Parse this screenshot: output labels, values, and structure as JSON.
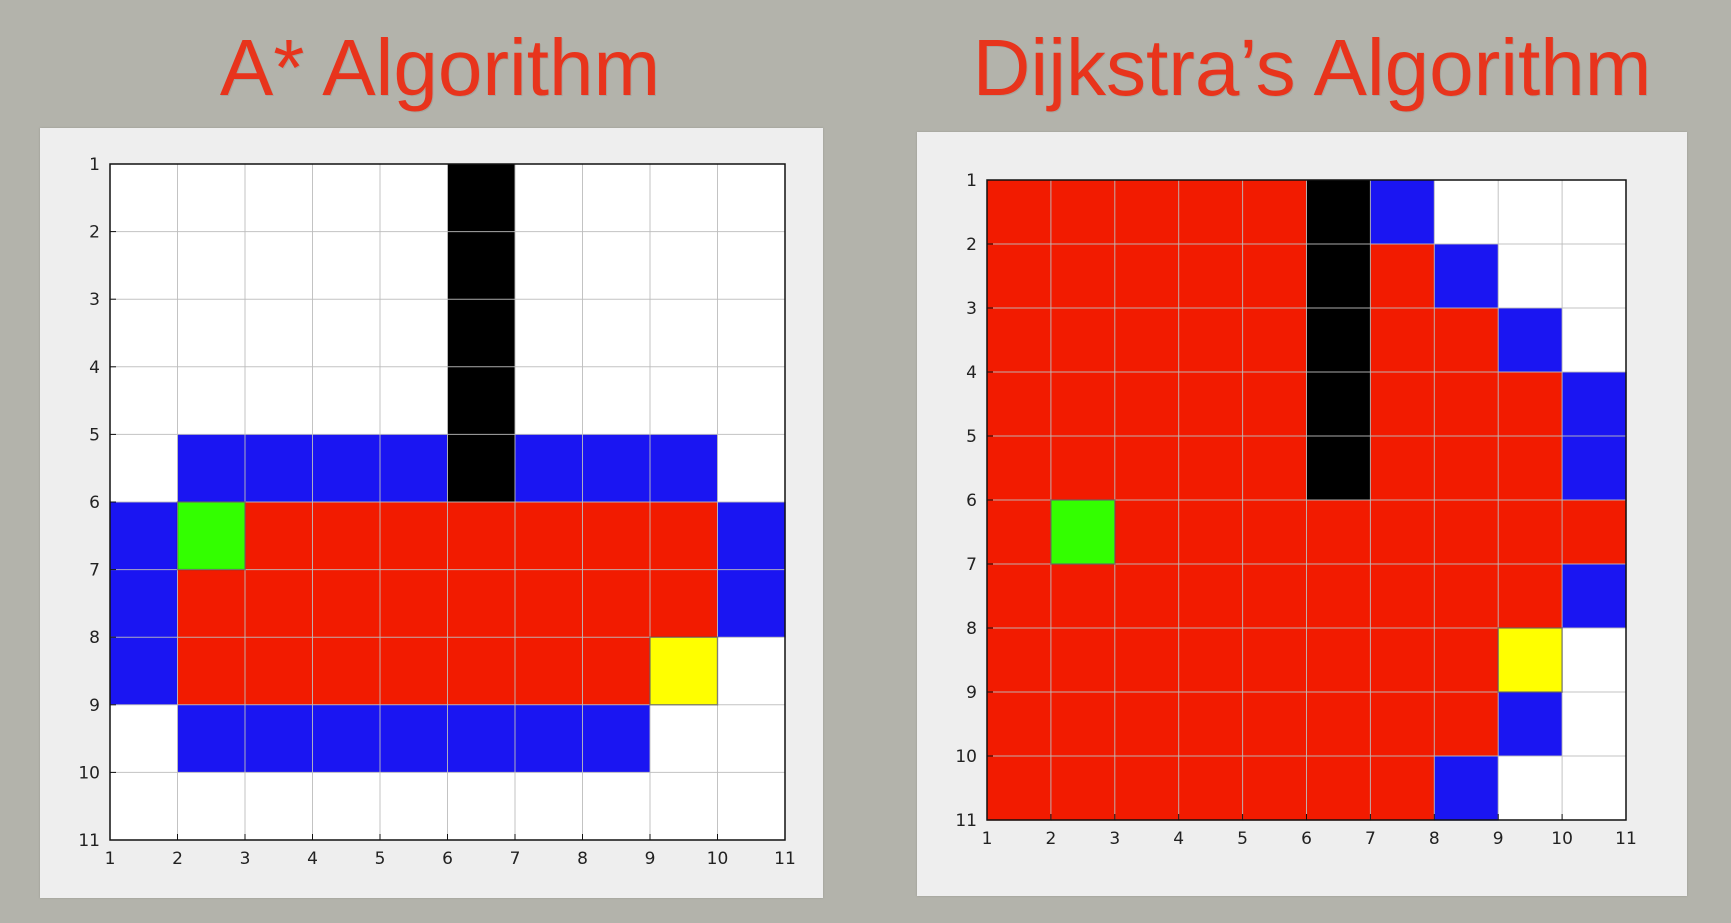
{
  "colors": {
    "title": "#e8341c",
    "free": "#ffffff",
    "visited": "#f21b00",
    "frontier": "#1a15f2",
    "wall": "#000000",
    "start": "#33ff00",
    "goal": "#ffff00",
    "grid_line": "#bdbdbd",
    "frame": "#111111"
  },
  "legend_map": {
    "0": "free",
    "1": "visited",
    "2": "frontier",
    "3": "wall",
    "4": "start",
    "5": "goal"
  },
  "chart_data": [
    {
      "type": "heatmap",
      "title": "A* Algorithm",
      "xlim": [
        1,
        11
      ],
      "ylim": [
        1,
        11
      ],
      "y_direction": "down",
      "x_ticks": [
        "1",
        "2",
        "3",
        "4",
        "5",
        "6",
        "7",
        "8",
        "9",
        "10",
        "11"
      ],
      "y_ticks": [
        "1",
        "2",
        "3",
        "4",
        "5",
        "6",
        "7",
        "8",
        "9",
        "10",
        "11"
      ],
      "grid": true,
      "cells": [
        [
          0,
          0,
          0,
          0,
          0,
          3,
          0,
          0,
          0,
          0
        ],
        [
          0,
          0,
          0,
          0,
          0,
          3,
          0,
          0,
          0,
          0
        ],
        [
          0,
          0,
          0,
          0,
          0,
          3,
          0,
          0,
          0,
          0
        ],
        [
          0,
          0,
          0,
          0,
          0,
          3,
          0,
          0,
          0,
          0
        ],
        [
          0,
          2,
          2,
          2,
          2,
          3,
          2,
          2,
          2,
          0
        ],
        [
          2,
          4,
          1,
          1,
          1,
          1,
          1,
          1,
          1,
          2
        ],
        [
          2,
          1,
          1,
          1,
          1,
          1,
          1,
          1,
          1,
          2
        ],
        [
          2,
          1,
          1,
          1,
          1,
          1,
          1,
          1,
          5,
          0
        ],
        [
          0,
          2,
          2,
          2,
          2,
          2,
          2,
          2,
          0,
          0
        ],
        [
          0,
          0,
          0,
          0,
          0,
          0,
          0,
          0,
          0,
          0
        ]
      ]
    },
    {
      "type": "heatmap",
      "title": "Dijkstra’s Algorithm",
      "xlim": [
        1,
        11
      ],
      "ylim": [
        1,
        11
      ],
      "y_direction": "down",
      "x_ticks": [
        "1",
        "2",
        "3",
        "4",
        "5",
        "6",
        "7",
        "8",
        "9",
        "10",
        "11"
      ],
      "y_ticks": [
        "1",
        "2",
        "3",
        "4",
        "5",
        "6",
        "7",
        "8",
        "9",
        "10",
        "11"
      ],
      "grid": true,
      "cells": [
        [
          1,
          1,
          1,
          1,
          1,
          3,
          2,
          0,
          0,
          0
        ],
        [
          1,
          1,
          1,
          1,
          1,
          3,
          1,
          2,
          0,
          0
        ],
        [
          1,
          1,
          1,
          1,
          1,
          3,
          1,
          1,
          2,
          0
        ],
        [
          1,
          1,
          1,
          1,
          1,
          3,
          1,
          1,
          1,
          2
        ],
        [
          1,
          1,
          1,
          1,
          1,
          3,
          1,
          1,
          1,
          2
        ],
        [
          1,
          4,
          1,
          1,
          1,
          1,
          1,
          1,
          1,
          1
        ],
        [
          1,
          1,
          1,
          1,
          1,
          1,
          1,
          1,
          1,
          2
        ],
        [
          1,
          1,
          1,
          1,
          1,
          1,
          1,
          1,
          5,
          0
        ],
        [
          1,
          1,
          1,
          1,
          1,
          1,
          1,
          1,
          2,
          0
        ],
        [
          1,
          1,
          1,
          1,
          1,
          1,
          1,
          2,
          0,
          0
        ]
      ]
    }
  ]
}
